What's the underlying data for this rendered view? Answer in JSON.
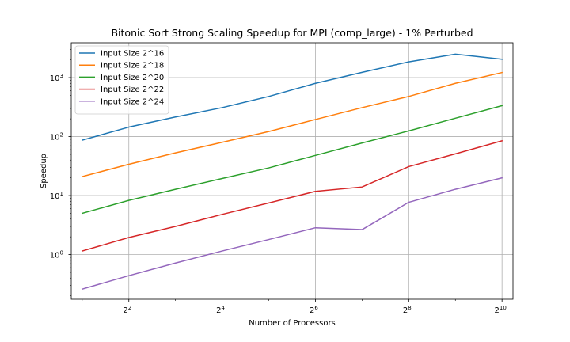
{
  "chart_data": {
    "type": "line",
    "title": "Bitonic Sort Strong Scaling Speedup for MPI (comp_large) - 1% Perturbed",
    "xlabel": "Number of Processors",
    "ylabel": "Speedup",
    "x_scale": "log2",
    "y_scale": "log10",
    "x": [
      2,
      4,
      8,
      16,
      32,
      64,
      128,
      256,
      512,
      1024
    ],
    "xticks": [
      {
        "value": 4,
        "base": "2",
        "exp": "2"
      },
      {
        "value": 16,
        "base": "2",
        "exp": "4"
      },
      {
        "value": 64,
        "base": "2",
        "exp": "6"
      },
      {
        "value": 256,
        "base": "2",
        "exp": "8"
      },
      {
        "value": 1024,
        "base": "2",
        "exp": "10"
      }
    ],
    "yticks": [
      {
        "value": 1,
        "base": "10",
        "exp": "0"
      },
      {
        "value": 10,
        "base": "10",
        "exp": "1"
      },
      {
        "value": 100,
        "base": "10",
        "exp": "2"
      },
      {
        "value": 1000,
        "base": "10",
        "exp": "3"
      }
    ],
    "grid": true,
    "legend_position": "top-left",
    "series": [
      {
        "name": "Input Size 2^16",
        "color": "#1f77b4",
        "values": [
          87,
          145,
          215,
          310,
          480,
          800,
          1230,
          1850,
          2500,
          2050
        ]
      },
      {
        "name": "Input Size 2^18",
        "color": "#ff7f0e",
        "values": [
          21,
          34,
          53,
          80,
          122,
          195,
          310,
          480,
          800,
          1220
        ]
      },
      {
        "name": "Input Size 2^20",
        "color": "#2ca02c",
        "values": [
          5.0,
          8.3,
          12.8,
          19.5,
          29.5,
          48,
          78,
          125,
          205,
          335
        ]
      },
      {
        "name": "Input Size 2^22",
        "color": "#d62728",
        "values": [
          1.15,
          1.95,
          3.0,
          4.8,
          7.5,
          11.8,
          14.0,
          31,
          51,
          85
        ]
      },
      {
        "name": "Input Size 2^24",
        "color": "#9467bd",
        "values": [
          0.26,
          0.44,
          0.72,
          1.15,
          1.8,
          2.85,
          2.65,
          7.7,
          12.8,
          20
        ]
      }
    ]
  }
}
